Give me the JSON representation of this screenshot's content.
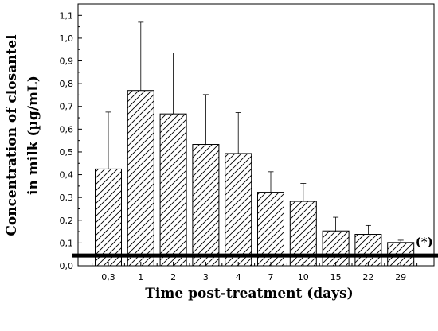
{
  "chart_data": {
    "type": "bar",
    "categories": [
      "0,3",
      "1",
      "2",
      "3",
      "4",
      "7",
      "10",
      "15",
      "22",
      "29"
    ],
    "values": [
      0.425,
      0.77,
      0.667,
      0.533,
      0.493,
      0.323,
      0.283,
      0.153,
      0.138,
      0.102
    ],
    "error_upper": [
      0.675,
      1.07,
      0.935,
      0.752,
      0.673,
      0.413,
      0.362,
      0.213,
      0.177,
      0.112
    ],
    "ylim": [
      0.0,
      1.15
    ],
    "yticks": [
      "0,0",
      "0,1",
      "0,2",
      "0,3",
      "0,4",
      "0,5",
      "0,6",
      "0,7",
      "0,8",
      "0,9",
      "1,0",
      "1,1"
    ],
    "ytick_values": [
      0.0,
      0.1,
      0.2,
      0.3,
      0.4,
      0.5,
      0.6,
      0.7,
      0.8,
      0.9,
      1.0,
      1.1
    ],
    "xlabel": "Time post-treatment (days)",
    "ylabel_line1": "Concentration of closantel",
    "ylabel_line2": "in milk (µg/mL)",
    "reference_line_value": 0.045,
    "annotation": "(*)",
    "bar_pattern": "diagonal-hatch",
    "grid": false,
    "colors": {
      "bar_fill": "#ffffff",
      "hatch": "#000000",
      "reference_line": "#000000"
    }
  }
}
